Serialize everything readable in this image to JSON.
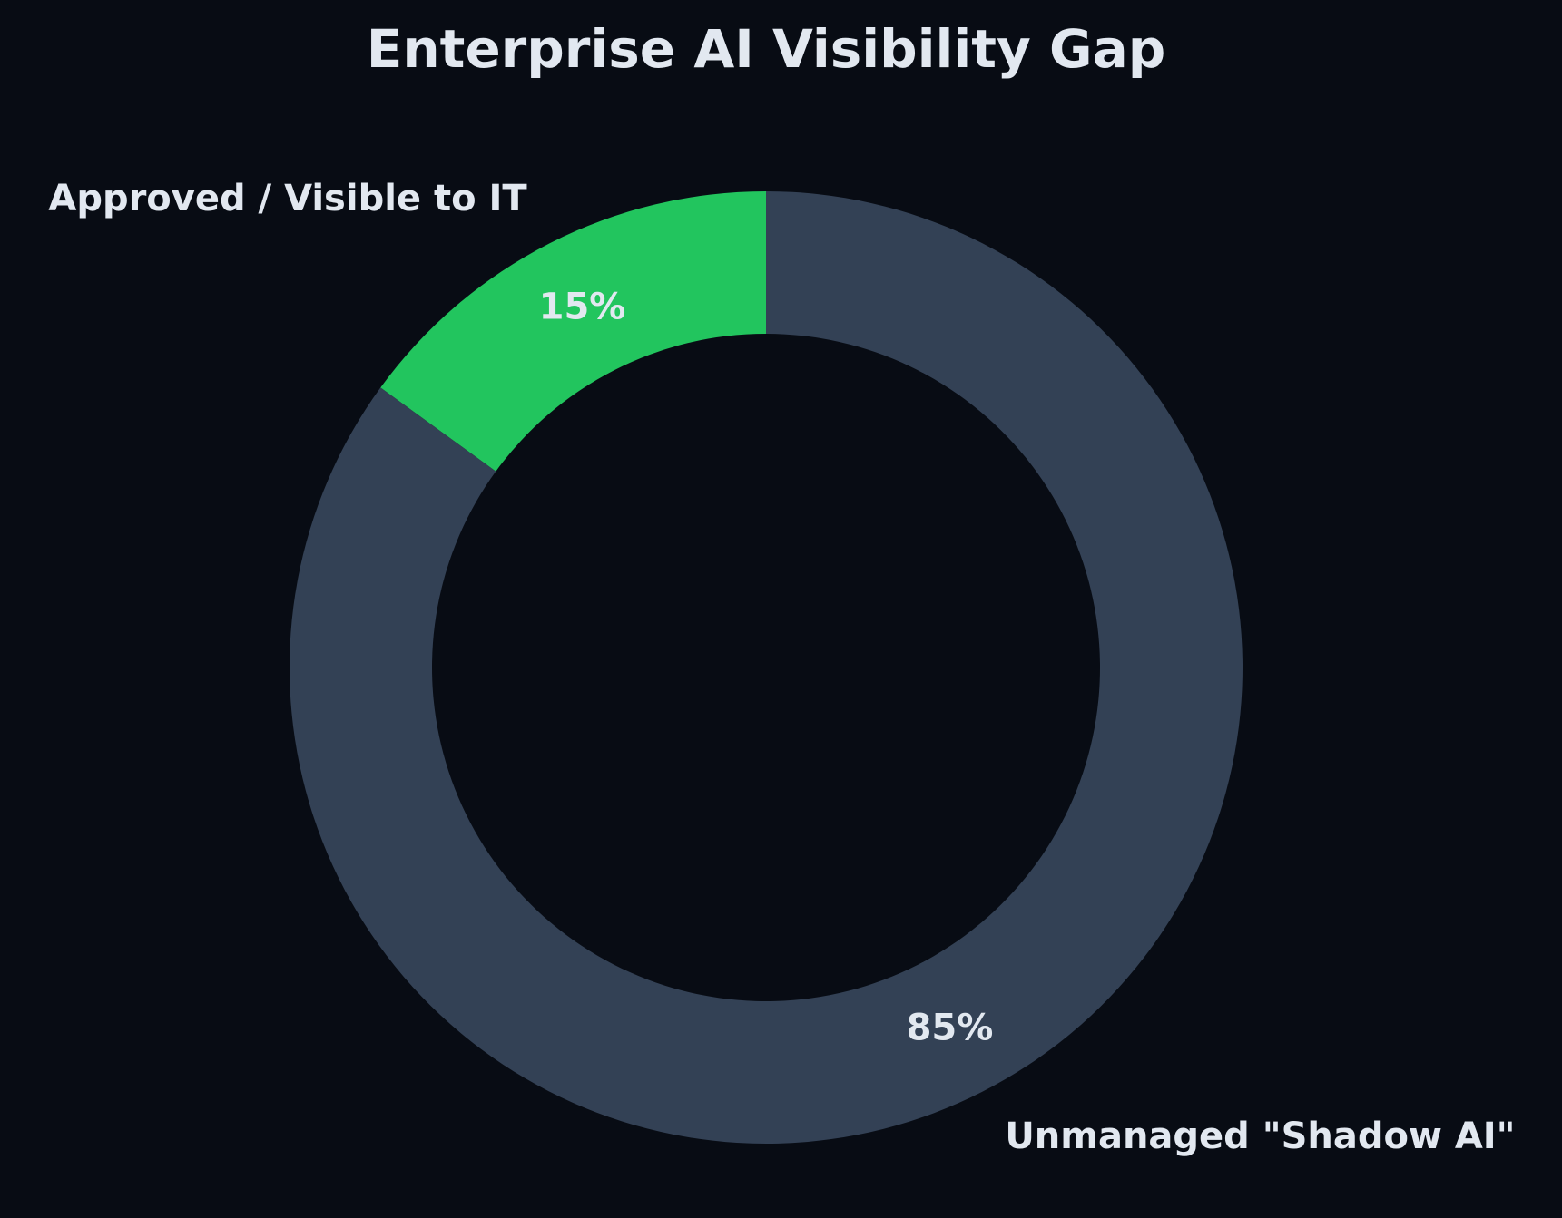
{
  "chart_data": {
    "type": "pie",
    "style": "donut",
    "title": "Enterprise AI Visibility Gap",
    "start_angle_deg": 90,
    "direction": "counterclockwise",
    "legend": "none",
    "slices": [
      {
        "label": "Approved / Visible to IT",
        "value": 15,
        "value_label": "15%",
        "color": "#22c55e"
      },
      {
        "label": "Unmanaged \"Shadow AI\"",
        "value": 85,
        "value_label": "85%",
        "color": "#334155"
      }
    ]
  },
  "colors": {
    "background": "#080c14",
    "text": "#e2e8f0"
  }
}
